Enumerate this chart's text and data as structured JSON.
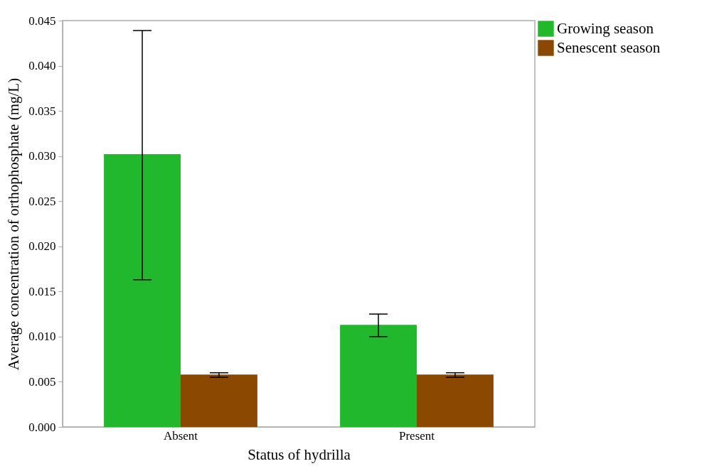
{
  "chart_data": {
    "type": "bar",
    "xlabel": "Status of hydrilla",
    "ylabel": "Average concentration of orthophosphate (mg/L)",
    "categories": [
      "Absent",
      "Present"
    ],
    "series": [
      {
        "name": "Growing season",
        "color": "#22b82e",
        "values": [
          0.0302,
          0.0113
        ],
        "errors": [
          [
            0.0163,
            0.0439
          ],
          [
            0.01,
            0.0125
          ]
        ]
      },
      {
        "name": "Senescent season",
        "color": "#8b4800",
        "values": [
          0.0058,
          0.0058
        ],
        "errors": [
          [
            0.0055,
            0.006
          ],
          [
            0.0055,
            0.006
          ]
        ]
      }
    ],
    "ylim": [
      0,
      0.045
    ],
    "yticks": [
      {
        "value": 0,
        "label": "0.000"
      },
      0.005,
      {
        "value": 0.01,
        "label": "0.010"
      },
      0.015,
      {
        "value": 0.02,
        "label": "0.020"
      },
      0.025,
      {
        "value": 0.03,
        "label": "0.030"
      },
      0.035,
      {
        "value": 0.04,
        "label": "0.040"
      },
      0.045
    ],
    "grid": false,
    "legend": "top right"
  }
}
